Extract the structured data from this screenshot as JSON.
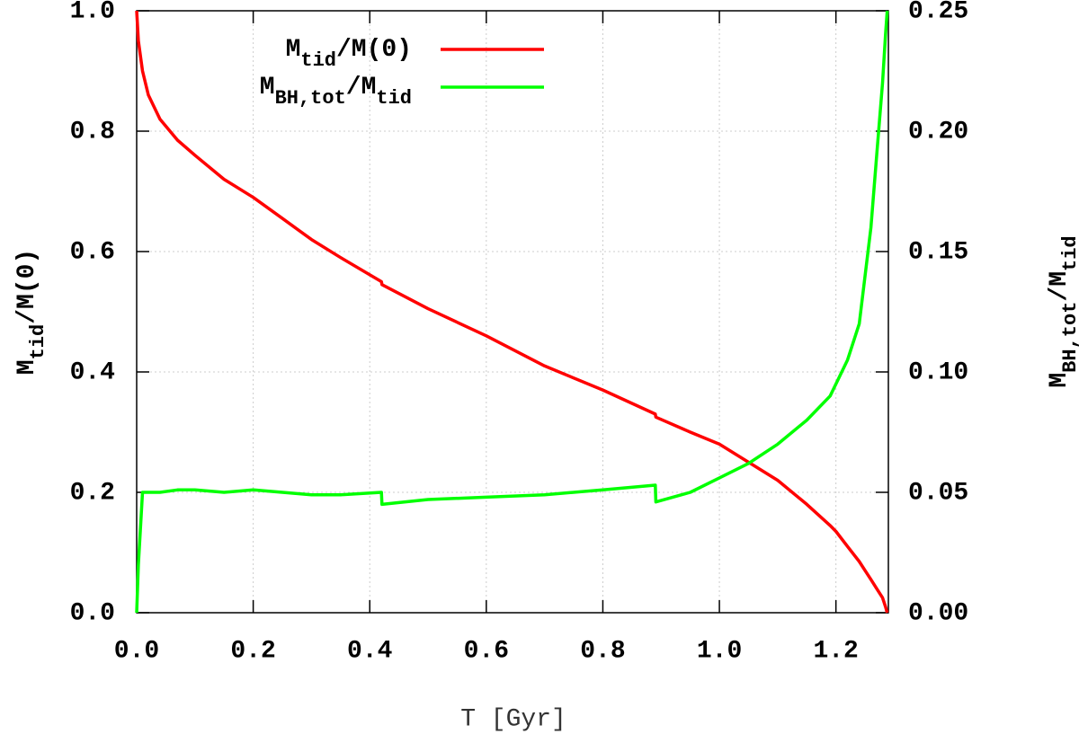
{
  "chart_data": {
    "type": "line",
    "xlabel": "T [Gyr]",
    "ylabel": [
      "M",
      "tid",
      "/M(0)"
    ],
    "y2label": [
      "M",
      "BH,tot",
      "/M",
      "tid"
    ],
    "x": [
      0,
      0.003,
      0.01,
      0.02,
      0.04,
      0.07,
      0.1,
      0.15,
      0.2,
      0.25,
      0.3,
      0.35,
      0.42,
      0.421,
      0.5,
      0.6,
      0.7,
      0.8,
      0.89,
      0.891,
      0.95,
      1.0,
      1.05,
      1.1,
      1.15,
      1.19,
      1.2,
      1.22,
      1.24,
      1.25,
      1.26,
      1.27,
      1.28,
      1.285,
      1.288
    ],
    "series": [
      {
        "name": [
          "M",
          "tid",
          "/M(0)"
        ],
        "color": "#ff0000",
        "axis": "y",
        "values": [
          1.0,
          0.95,
          0.9,
          0.86,
          0.82,
          0.785,
          0.76,
          0.72,
          0.69,
          0.655,
          0.62,
          0.59,
          0.55,
          0.545,
          0.505,
          0.46,
          0.41,
          0.37,
          0.33,
          0.325,
          0.3,
          0.28,
          0.25,
          0.22,
          0.18,
          0.145,
          0.135,
          0.11,
          0.085,
          0.07,
          0.055,
          0.04,
          0.025,
          0.01,
          0.0
        ]
      },
      {
        "name": [
          "M",
          "BH,tot",
          "/M",
          "tid"
        ],
        "color": "#00ff00",
        "axis": "y2",
        "values": [
          0.0,
          0.02,
          0.05,
          0.05,
          0.05,
          0.051,
          0.051,
          0.05,
          0.051,
          0.05,
          0.049,
          0.049,
          0.05,
          0.045,
          0.047,
          0.048,
          0.049,
          0.051,
          0.053,
          0.046,
          0.05,
          0.056,
          0.062,
          0.07,
          0.08,
          0.09,
          0.095,
          0.105,
          0.12,
          0.14,
          0.16,
          0.19,
          0.22,
          0.24,
          0.25
        ]
      }
    ],
    "xlim": [
      0,
      1.29
    ],
    "ylim": [
      0,
      1
    ],
    "y2lim": [
      0,
      0.25
    ],
    "xticks": [
      {
        "value": 0,
        "label": "0.0"
      },
      {
        "value": 0.2,
        "label": "0.2"
      },
      {
        "value": 0.4,
        "label": "0.4"
      },
      {
        "value": 0.6,
        "label": "0.6"
      },
      {
        "value": 0.8,
        "label": "0.8"
      },
      {
        "value": 1.0,
        "label": "1.0"
      },
      {
        "value": 1.2,
        "label": "1.2"
      }
    ],
    "yticks": [
      {
        "value": 0,
        "label": "0.0"
      },
      {
        "value": 0.2,
        "label": "0.2"
      },
      {
        "value": 0.4,
        "label": "0.4"
      },
      {
        "value": 0.6,
        "label": "0.6"
      },
      {
        "value": 0.8,
        "label": "0.8"
      },
      {
        "value": 1.0,
        "label": "1.0"
      }
    ],
    "y2ticks": [
      {
        "value": 0,
        "label": "0.00"
      },
      {
        "value": 0.05,
        "label": "0.05"
      },
      {
        "value": 0.1,
        "label": "0.10"
      },
      {
        "value": 0.15,
        "label": "0.15"
      },
      {
        "value": 0.2,
        "label": "0.20"
      },
      {
        "value": 0.25,
        "label": "0.25"
      }
    ],
    "grid": true,
    "legend": "top-left"
  }
}
